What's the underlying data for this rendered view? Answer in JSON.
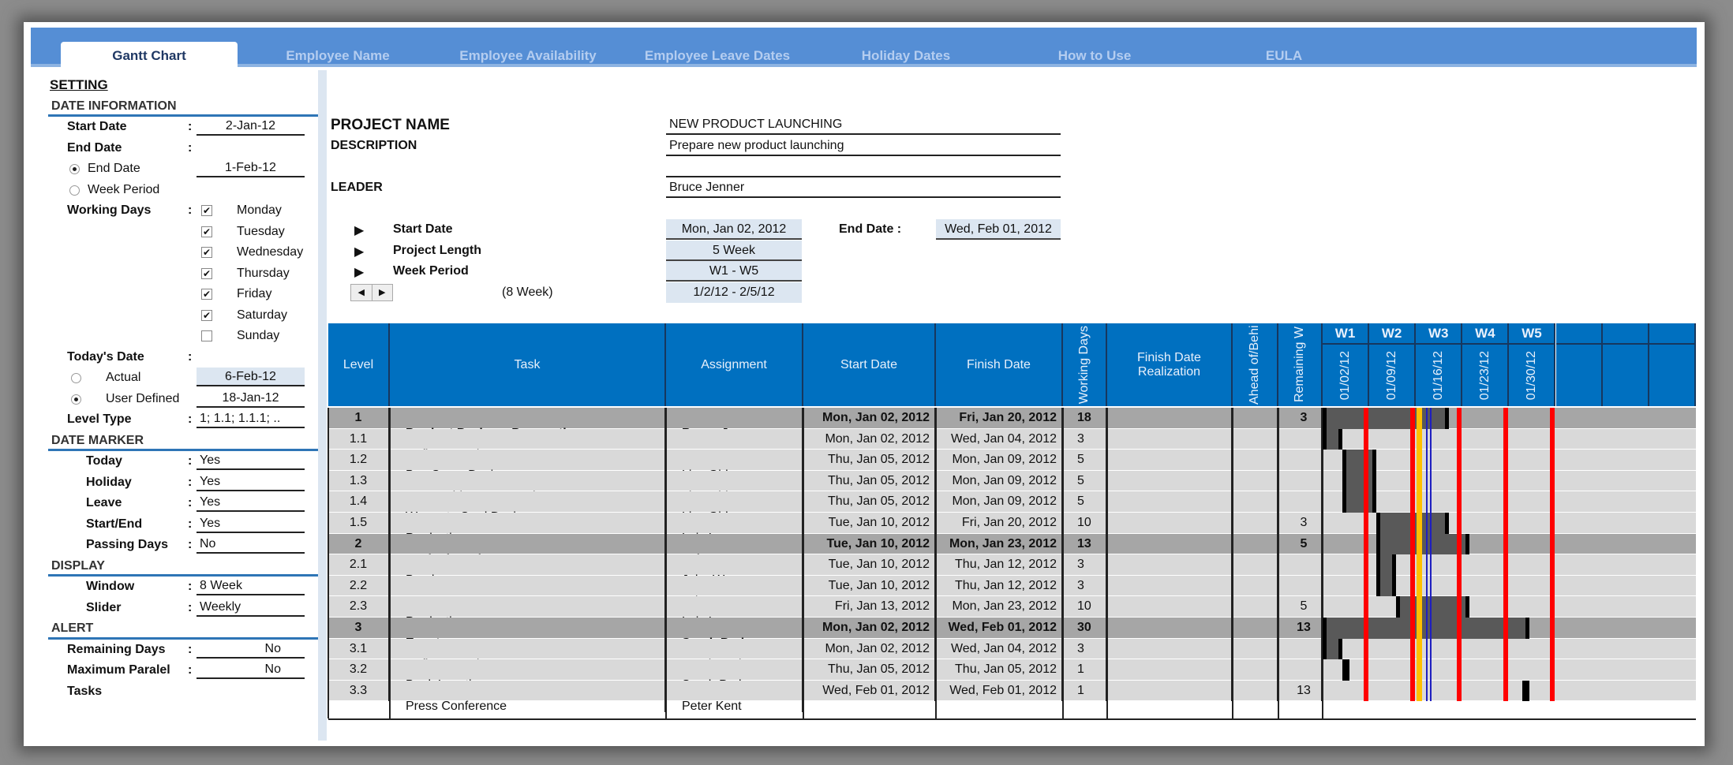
{
  "tabs": [
    "Gantt Chart",
    "Employee Name",
    "Employee Availability",
    "Employee Leave Dates",
    "Holiday Dates",
    "How to Use",
    "EULA"
  ],
  "setting": {
    "title": "SETTING",
    "date_information": "DATE INFORMATION",
    "start_date_label": "Start Date",
    "start_date": "2-Jan-12",
    "end_date_label": "End Date",
    "end_date_option": "End Date",
    "end_date": "1-Feb-12",
    "week_period_option": "Week Period",
    "working_days_label": "Working Days",
    "working_days": [
      {
        "day": "Monday",
        "checked": true
      },
      {
        "day": "Tuesday",
        "checked": true
      },
      {
        "day": "Wednesday",
        "checked": true
      },
      {
        "day": "Thursday",
        "checked": true
      },
      {
        "day": "Friday",
        "checked": true
      },
      {
        "day": "Saturday",
        "checked": true
      },
      {
        "day": "Sunday",
        "checked": false
      }
    ],
    "todays_date_label": "Today's Date",
    "actual_option": "Actual",
    "actual_date": "6-Feb-12",
    "user_defined_option": "User Defined",
    "user_defined_date": "18-Jan-12",
    "level_type_label": "Level Type",
    "level_type": "1; 1.1; 1.1.1; ..",
    "date_marker": "DATE MARKER",
    "markers": [
      {
        "label": "Today",
        "value": "Yes"
      },
      {
        "label": "Holiday",
        "value": "Yes"
      },
      {
        "label": "Leave",
        "value": "Yes"
      },
      {
        "label": "Start/End",
        "value": "Yes"
      },
      {
        "label": "Passing Days",
        "value": "No"
      }
    ],
    "display": "DISPLAY",
    "window_label": "Window",
    "window": "8 Week",
    "slider_label": "Slider",
    "slider": "Weekly",
    "alert": "ALERT",
    "remaining_days_label": "Remaining Days",
    "remaining_days": "No",
    "max_parallel_label": "Maximum Paralel",
    "max_parallel": "No",
    "tasks_label": "Tasks"
  },
  "project": {
    "name_label": "PROJECT NAME",
    "name": "NEW PRODUCT LAUNCHING",
    "description_label": "DESCRIPTION",
    "description": "Prepare new product launching",
    "leader_label": "LEADER",
    "leader": "Bruce Jenner",
    "start_date_label": "Start Date",
    "start_date": "Mon, Jan 02, 2012",
    "end_date_label": "End Date :",
    "end_date": "Wed, Feb 01, 2012",
    "project_length_label": "Project Length",
    "project_length": "5 Week",
    "week_period_label": "Week Period",
    "week_period": "W1 - W5",
    "window_note": "(8 Week)",
    "range": "1/2/12 - 2/5/12"
  },
  "table": {
    "headers": [
      "Level",
      "Task",
      "Assignment",
      "Start Date",
      "Finish Date",
      "Working Days",
      "Finish Date Realization",
      "Ahead of/Behind",
      "Remaining W"
    ],
    "weeks": [
      {
        "label": "W1",
        "date": "01/02/12"
      },
      {
        "label": "W2",
        "date": "01/09/12"
      },
      {
        "label": "W3",
        "date": "01/16/12"
      },
      {
        "label": "W4",
        "date": "01/23/12"
      },
      {
        "label": "W5",
        "date": "01/30/12"
      },
      {
        "label": "",
        "date": ""
      },
      {
        "label": "",
        "date": ""
      },
      {
        "label": "",
        "date": ""
      }
    ],
    "rows": [
      {
        "level": "1",
        "task": "Product Package Preparation",
        "assignment": "Bruce Jenner",
        "start": "Mon, Jan 02, 2012",
        "finish": "Fri, Jan 20, 2012",
        "days": "18",
        "realization": "",
        "ahead": "",
        "remaining": "3",
        "parent": true,
        "s": "2012-01-02",
        "f": "2012-01-20"
      },
      {
        "level": "1.1",
        "task": "Define Brand Name",
        "assignment": "Bruce Jenner",
        "start": "Mon, Jan 02, 2012",
        "finish": "Wed, Jan 04, 2012",
        "days": "3",
        "realization": "",
        "ahead": "",
        "remaining": "",
        "parent": false,
        "s": "2012-01-02",
        "f": "2012-01-04"
      },
      {
        "level": "1.2",
        "task": "Box Cover Design",
        "assignment": "Lisa Girl",
        "start": "Thu, Jan 05, 2012",
        "finish": "Mon, Jan 09, 2012",
        "days": "5",
        "realization": "",
        "ahead": "",
        "remaining": "",
        "parent": false,
        "s": "2012-01-05",
        "f": "2012-01-09"
      },
      {
        "level": "1.3",
        "task": "User Guide Cover Design",
        "assignment": "Lisa Girl",
        "start": "Thu, Jan 05, 2012",
        "finish": "Mon, Jan 09, 2012",
        "days": "5",
        "realization": "",
        "ahead": "",
        "remaining": "",
        "parent": false,
        "s": "2012-01-05",
        "f": "2012-01-09"
      },
      {
        "level": "1.4",
        "task": "Warranty Card Design",
        "assignment": "Lisa Girl",
        "start": "Thu, Jan 05, 2012",
        "finish": "Mon, Jan 09, 2012",
        "days": "5",
        "realization": "",
        "ahead": "",
        "remaining": "",
        "parent": false,
        "s": "2012-01-05",
        "f": "2012-01-09"
      },
      {
        "level": "1.5",
        "task": "Production",
        "assignment": "Lois Lang",
        "start": "Tue, Jan 10, 2012",
        "finish": "Fri, Jan 20, 2012",
        "days": "10",
        "realization": "",
        "ahead": "",
        "remaining": "3",
        "parent": false,
        "s": "2012-01-10",
        "f": "2012-01-20"
      },
      {
        "level": "2",
        "task": "Marketing Kit",
        "assignment": "John Wayne",
        "start": "Tue, Jan 10, 2012",
        "finish": "Mon, Jan 23, 2012",
        "days": "13",
        "realization": "",
        "ahead": "",
        "remaining": "5",
        "parent": true,
        "s": "2012-01-10",
        "f": "2012-01-23"
      },
      {
        "level": "2.1",
        "task": "Brochures",
        "assignment": "John Wayne",
        "start": "Tue, Jan 10, 2012",
        "finish": "Thu, Jan 12, 2012",
        "days": "3",
        "realization": "",
        "ahead": "",
        "remaining": "",
        "parent": false,
        "s": "2012-01-10",
        "f": "2012-01-12"
      },
      {
        "level": "2.2",
        "task": "Banners",
        "assignment": "John Harper",
        "start": "Tue, Jan 10, 2012",
        "finish": "Thu, Jan 12, 2012",
        "days": "3",
        "realization": "",
        "ahead": "",
        "remaining": "",
        "parent": false,
        "s": "2012-01-10",
        "f": "2012-01-12"
      },
      {
        "level": "2.3",
        "task": "Production",
        "assignment": "Lois Lang",
        "start": "Fri, Jan 13, 2012",
        "finish": "Mon, Jan 23, 2012",
        "days": "10",
        "realization": "",
        "ahead": "",
        "remaining": "5",
        "parent": false,
        "s": "2012-01-13",
        "f": "2012-01-23"
      },
      {
        "level": "3",
        "task": "Event",
        "assignment": "Sarah Parker",
        "start": "Mon, Jan 02, 2012",
        "finish": "Wed, Feb 01, 2012",
        "days": "30",
        "realization": "",
        "ahead": "",
        "remaining": "13",
        "parent": true,
        "s": "2012-01-02",
        "f": "2012-02-01"
      },
      {
        "level": "3.1",
        "task": "Define Location",
        "assignment": "Sarah Parker",
        "start": "Mon, Jan 02, 2012",
        "finish": "Wed, Jan 04, 2012",
        "days": "3",
        "realization": "",
        "ahead": "",
        "remaining": "",
        "parent": false,
        "s": "2012-01-02",
        "f": "2012-01-04"
      },
      {
        "level": "3.2",
        "task": "Book Location",
        "assignment": "Sarah Parker",
        "start": "Thu, Jan 05, 2012",
        "finish": "Thu, Jan 05, 2012",
        "days": "1",
        "realization": "",
        "ahead": "",
        "remaining": "",
        "parent": false,
        "s": "2012-01-05",
        "f": "2012-01-05"
      },
      {
        "level": "3.3",
        "task": "Press Conference",
        "assignment": "Peter Kent",
        "start": "Wed, Feb 01, 2012",
        "finish": "Wed, Feb 01, 2012",
        "days": "1",
        "realization": "",
        "ahead": "",
        "remaining": "13",
        "parent": false,
        "s": "2012-02-01",
        "f": "2012-02-01"
      }
    ],
    "gantt_start": "2012-01-02",
    "holidays": [
      "2012-01-16"
    ],
    "today": "2012-01-18",
    "colors": {
      "header": "#0070c0",
      "parent_row": "#a6a6a6",
      "child_row": "#d9d9d9",
      "bar": "#595959",
      "cap": "#000000",
      "non_working": "#ff0000",
      "holiday": "#ffc000",
      "today": "#1f1fbf"
    }
  }
}
